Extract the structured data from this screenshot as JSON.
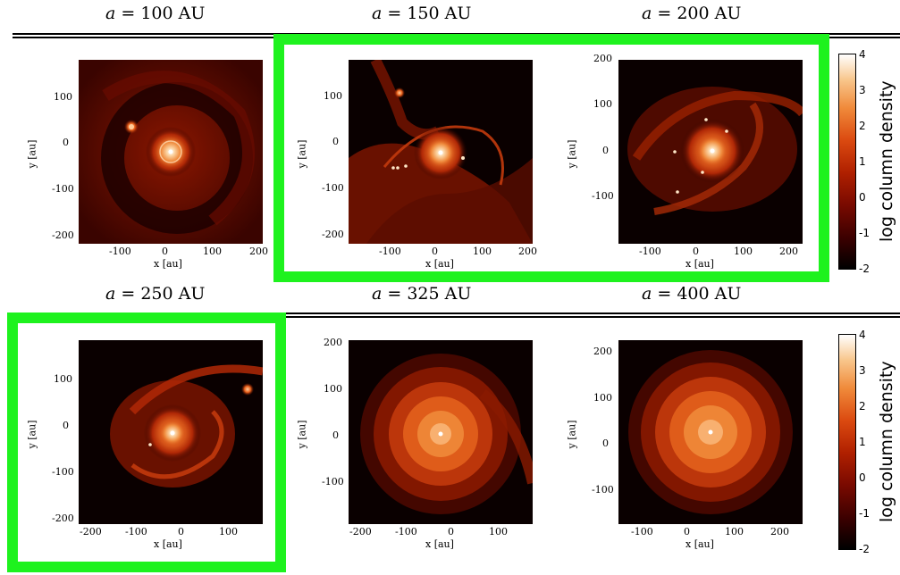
{
  "titles": [
    {
      "var": "a",
      "rest": " = 100 AU"
    },
    {
      "var": "a",
      "rest": " = 150 AU"
    },
    {
      "var": "a",
      "rest": " = 200 AU"
    },
    {
      "var": "a",
      "rest": " = 250 AU"
    },
    {
      "var": "a",
      "rest": " = 325 AU"
    },
    {
      "var": "a",
      "rest": " = 400 AU"
    }
  ],
  "axes": {
    "xlabel": "x [au]",
    "ylabel": "y [au]"
  },
  "panels": [
    {
      "xticks": [
        "-100",
        "0",
        "100",
        "200"
      ],
      "yticks": [
        "100",
        "0",
        "-100",
        "-200"
      ]
    },
    {
      "xticks": [
        "-100",
        "0",
        "100",
        "200"
      ],
      "yticks": [
        "100",
        "0",
        "-100",
        "-200"
      ]
    },
    {
      "xticks": [
        "-100",
        "0",
        "100",
        "200"
      ],
      "yticks": [
        "200",
        "100",
        "0",
        "-100"
      ]
    },
    {
      "xticks": [
        "-200",
        "-100",
        "0",
        "100"
      ],
      "yticks": [
        "100",
        "0",
        "-100",
        "-200"
      ]
    },
    {
      "xticks": [
        "-200",
        "-100",
        "0",
        "100"
      ],
      "yticks": [
        "200",
        "100",
        "0",
        "-100"
      ]
    },
    {
      "xticks": [
        "-100",
        "0",
        "100",
        "200"
      ],
      "yticks": [
        "200",
        "100",
        "0",
        "-100"
      ]
    }
  ],
  "colorbar": {
    "title": "log column density",
    "ticks": [
      "4",
      "3",
      "2",
      "1",
      "0",
      "-1",
      "-2"
    ]
  },
  "highlight_color": "#1ef21e"
}
